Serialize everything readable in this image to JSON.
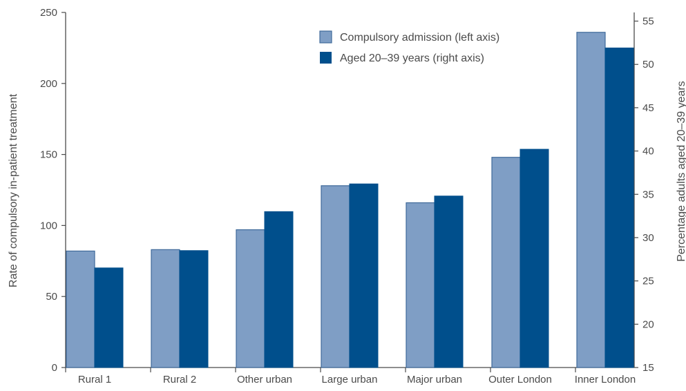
{
  "chart_data": {
    "type": "bar",
    "title": "",
    "categories": [
      "Rural 1",
      "Rural 2",
      "Other urban",
      "Large urban",
      "Major urban",
      "Outer London",
      "Inner London"
    ],
    "series": [
      {
        "name": "Compulsory admission (left axis)",
        "axis": "left",
        "values": [
          82,
          83,
          97,
          128,
          116,
          148,
          236
        ],
        "color": "#7f9ec5"
      },
      {
        "name": "Aged 20–39 years (right axis)",
        "axis": "right",
        "values": [
          26.5,
          28.5,
          33.0,
          36.2,
          34.8,
          40.2,
          51.9
        ],
        "color": "#004f8c"
      }
    ],
    "ylabel": "Rate of compulsory in-patient treatment",
    "ylim": [
      0,
      250
    ],
    "yticks": [
      "0",
      "50",
      "100",
      "150",
      "200",
      "250"
    ],
    "y2label": "Percentage adults aged 20–39 years",
    "y2lim": [
      15,
      56
    ],
    "y2ticks": [
      "15",
      "20",
      "25",
      "30",
      "35",
      "40",
      "45",
      "50",
      "55"
    ],
    "grid": false,
    "legend_position": "top-right"
  },
  "colors": {
    "axis": "#4a4a4a",
    "bar_border": "#3f6a9a"
  }
}
